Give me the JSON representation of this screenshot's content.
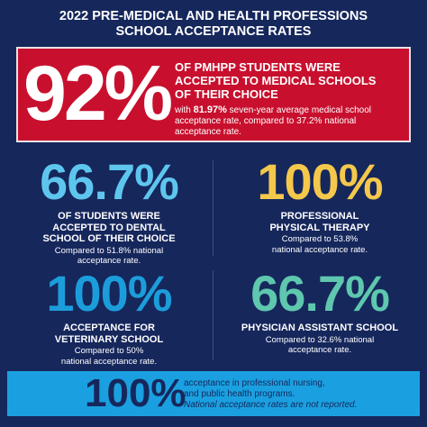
{
  "title": [
    "2022 PRE-MEDICAL AND HEALTH PROFESSIONS",
    "SCHOOL ACCEPTANCE RATES"
  ],
  "highlight": {
    "stat": "92%",
    "headline": [
      "OF PMHPP STUDENTS WERE",
      "ACCEPTED TO MEDICAL SCHOOLS",
      "OF THEIR CHOICE"
    ],
    "detail_prefix": "with",
    "detail_stat": "81.97%",
    "detail_text": "seven-year average medical school acceptance rate, compared to 37.2% national acceptance rate."
  },
  "stats": [
    {
      "stat": "66.7%",
      "label": [
        "OF STUDENTS WERE",
        "ACCEPTED TO DENTAL",
        "SCHOOL OF THEIR CHOICE"
      ],
      "note": [
        "Compared to 51.8% national",
        "acceptance rate."
      ]
    },
    {
      "stat": "100%",
      "label": [
        "PROFESSIONAL",
        "PHYSICAL THERAPY"
      ],
      "note": [
        "Compared to 53.8%",
        "national acceptance rate."
      ]
    },
    {
      "stat": "100%",
      "label": [
        "ACCEPTANCE FOR",
        "VETERINARY SCHOOL"
      ],
      "note": [
        "Compared to 50%",
        "national acceptance rate."
      ]
    },
    {
      "stat": "66.7%",
      "label": [
        "PHYSICIAN ASSISTANT SCHOOL"
      ],
      "note": [
        "Compared to 32.6% national",
        "acceptance rate."
      ]
    }
  ],
  "footer": {
    "stat": "100%",
    "text": [
      "acceptance in professional nursing,",
      "and public health programs."
    ],
    "note": "National acceptance rates are not reported."
  }
}
